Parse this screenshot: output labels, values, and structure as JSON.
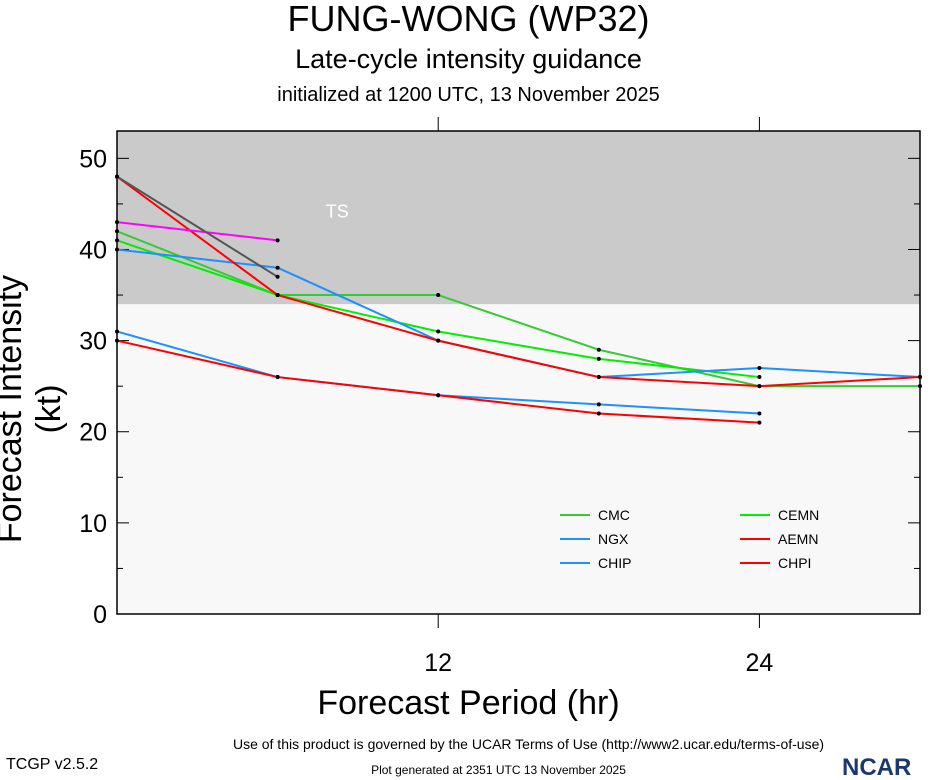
{
  "chart_data": {
    "type": "line",
    "title": "FUNG-WONG (WP32)",
    "subtitle": "Late-cycle intensity guidance",
    "subtitle2": "initialized at 1200 UTC, 13 November 2025",
    "xlabel": "Forecast Period (hr)",
    "ylabel": "Forecast Intensity (kt)",
    "xlim": [
      0,
      30
    ],
    "ylim": [
      0,
      53
    ],
    "xticks": [
      12,
      24
    ],
    "xticklabels": [
      "12",
      "24"
    ],
    "yticks": [
      0,
      10,
      20,
      30,
      40,
      50
    ],
    "yticklabels": [
      "0",
      "10",
      "20",
      "30",
      "40",
      "50"
    ],
    "band": {
      "label": "TS",
      "from": 34,
      "to": 53,
      "color": "#cacaca"
    },
    "x": [
      0,
      6,
      12,
      18,
      24,
      30
    ],
    "series": [
      {
        "name": "CMC",
        "color": "#33cc33",
        "values": [
          42,
          35,
          35,
          29,
          25,
          25
        ]
      },
      {
        "name": "CEMN",
        "color": "#00ee00",
        "values": [
          41,
          35,
          31,
          28,
          26,
          null
        ]
      },
      {
        "name": "NGX",
        "color": "#1e90ff",
        "values": [
          40,
          38,
          30,
          26,
          27,
          26
        ]
      },
      {
        "name": "AEMN",
        "color": "#ff0000",
        "values": [
          48,
          35,
          30,
          26,
          25,
          26
        ]
      },
      {
        "name": "CHIP",
        "color": "#1e90ff",
        "values": [
          31,
          26,
          24,
          23,
          22,
          null
        ]
      },
      {
        "name": "CHPI",
        "color": "#ff0000",
        "values": [
          30,
          26,
          24,
          22,
          21,
          null
        ]
      },
      {
        "name": "",
        "color": "#ff00ff",
        "values": [
          43,
          41,
          null,
          null,
          null,
          null
        ]
      },
      {
        "name": "",
        "color": "#555555",
        "values": [
          48,
          37,
          null,
          null,
          null,
          null
        ]
      }
    ]
  },
  "footer": {
    "terms": "Use of this product is governed by the UCAR Terms of Use (http://www2.ucar.edu/terms-of-use)",
    "version": "TCGP v2.5.2",
    "generated": "Plot generated at 2351 UTC   13 November 2025",
    "logo": "NCAR"
  }
}
